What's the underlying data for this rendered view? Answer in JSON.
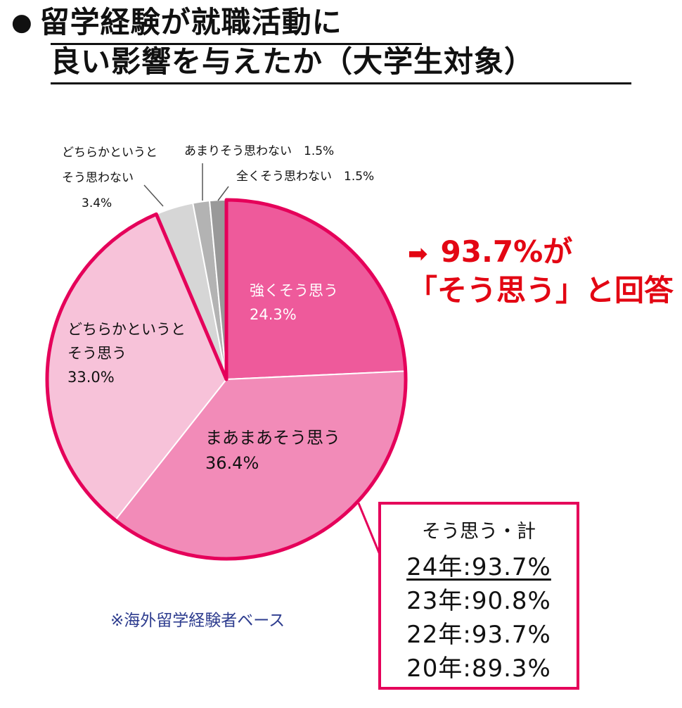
{
  "title": {
    "bullet": "●",
    "line1": "留学経験が就職活動に",
    "line2": "良い影響を与えたか（大学生対象）"
  },
  "callout": {
    "arrow": "➡",
    "line1": "93.7%が",
    "line2": "「そう思う」と回答",
    "color": "#e30613"
  },
  "summary": {
    "heading": "そう思う・計",
    "rows": [
      "24年:93.7%",
      "23年:90.8%",
      "22年:93.7%",
      "20年:89.3%"
    ],
    "border_color": "#e5005a"
  },
  "note": "※海外留学経験者ベース",
  "chart_data": {
    "type": "pie",
    "start": "12 o'clock, clockwise",
    "slices": [
      {
        "label": [
          "強くそう思う"
        ],
        "value": 24.3,
        "display": "24.3%",
        "color": "#ee5a9b",
        "label_color": "#ffffff"
      },
      {
        "label": [
          "まあまあそう思う"
        ],
        "value": 36.4,
        "display": "36.4%",
        "color": "#f28bb8",
        "label_color": "#111111"
      },
      {
        "label": [
          "どちらかというと",
          "そう思う"
        ],
        "value": 33.0,
        "display": "33.0%",
        "color": "#f7c2d9",
        "label_color": "#111111"
      },
      {
        "label": [
          "どちらかというと",
          "そう思わない"
        ],
        "value": 3.4,
        "display": "3.4%",
        "color": "#d6d6d6",
        "label_color": "#111111"
      },
      {
        "label": [
          "あまりそう思わない"
        ],
        "value": 1.5,
        "display": "1.5%",
        "color": "#b3b3b3",
        "label_color": "#111111"
      },
      {
        "label": [
          "全くそう思わない"
        ],
        "value": 1.5,
        "display": "1.5%",
        "color": "#999999",
        "label_color": "#111111"
      }
    ],
    "highlight_group": "そう思う（上位3区分）",
    "highlight_color": "#e5005a"
  }
}
